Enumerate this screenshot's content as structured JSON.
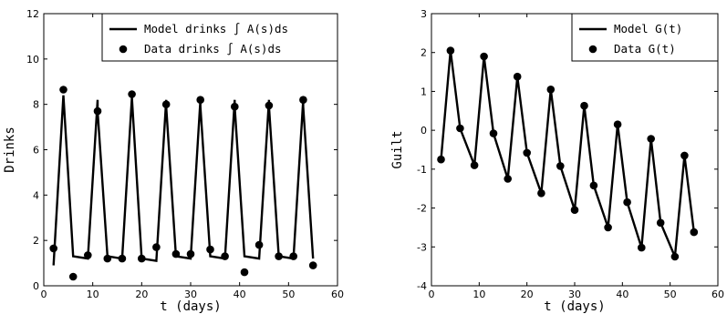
{
  "chart_data": [
    {
      "type": "line",
      "xlabel": "t (days)",
      "ylabel": "Drinks",
      "xlim": [
        0,
        60
      ],
      "ylim": [
        0,
        12
      ],
      "xticks": [
        0,
        10,
        20,
        30,
        40,
        50,
        60
      ],
      "yticks": [
        0,
        2,
        4,
        6,
        8,
        10,
        12
      ],
      "legend_position": "top-right",
      "series": [
        {
          "name": "Model drinks ∫ A(s)ds",
          "style": "line",
          "color": "#000000",
          "x": [
            2,
            4,
            6,
            9,
            11,
            11,
            13,
            16,
            18,
            20,
            23,
            25,
            25,
            27,
            30,
            32,
            32,
            34,
            37,
            39,
            39,
            41,
            44,
            46,
            46,
            48,
            51,
            53,
            53,
            55
          ],
          "y": [
            0.9,
            8.4,
            1.3,
            1.2,
            8.2,
            7.7,
            1.3,
            1.2,
            8.3,
            1.2,
            1.1,
            8.2,
            7.9,
            1.3,
            1.2,
            8.2,
            7.9,
            1.3,
            1.2,
            8.2,
            7.9,
            1.3,
            1.2,
            8.2,
            7.9,
            1.3,
            1.2,
            8.2,
            7.9,
            1.2
          ]
        },
        {
          "name": "Data drinks ∫ A(s)ds",
          "style": "markers",
          "color": "#000000",
          "x": [
            2,
            4,
            6,
            9,
            11,
            13,
            16,
            18,
            20,
            23,
            25,
            27,
            30,
            32,
            34,
            37,
            39,
            41,
            44,
            46,
            48,
            51,
            53,
            55
          ],
          "y": [
            1.65,
            8.65,
            0.4,
            1.35,
            7.7,
            1.2,
            1.2,
            8.45,
            1.2,
            1.7,
            8.0,
            1.4,
            1.4,
            8.2,
            1.6,
            1.3,
            7.9,
            0.6,
            1.8,
            7.95,
            1.3,
            1.3,
            8.2,
            0.9
          ]
        }
      ]
    },
    {
      "type": "line",
      "xlabel": "t (days)",
      "ylabel": "Guilt",
      "xlim": [
        0,
        60
      ],
      "ylim": [
        -4,
        3
      ],
      "xticks": [
        0,
        10,
        20,
        30,
        40,
        50,
        60
      ],
      "yticks": [
        -4,
        -3,
        -2,
        -1,
        0,
        1,
        2,
        3
      ],
      "legend_position": "top-right",
      "series": [
        {
          "name": "Model G(t)",
          "style": "line",
          "color": "#000000",
          "x": [
            2,
            4,
            6,
            9,
            11,
            13,
            16,
            18,
            20,
            23,
            25,
            27,
            30,
            32,
            34,
            37,
            39,
            41,
            44,
            46,
            48,
            51,
            53,
            55
          ],
          "y": [
            -0.75,
            2.05,
            0.05,
            -0.9,
            1.9,
            -0.08,
            -1.25,
            1.38,
            -0.58,
            -1.62,
            1.05,
            -0.92,
            -2.05,
            0.63,
            -1.42,
            -2.5,
            0.15,
            -1.85,
            -3.02,
            -0.22,
            -2.38,
            -3.25,
            -0.65,
            -2.62
          ]
        },
        {
          "name": "Data G(t)",
          "style": "markers",
          "color": "#000000",
          "x": [
            2,
            4,
            6,
            9,
            11,
            13,
            16,
            18,
            20,
            23,
            25,
            27,
            30,
            32,
            34,
            37,
            39,
            41,
            44,
            46,
            48,
            51,
            53,
            55
          ],
          "y": [
            -0.75,
            2.05,
            0.05,
            -0.9,
            1.9,
            -0.08,
            -1.25,
            1.38,
            -0.58,
            -1.62,
            1.05,
            -0.92,
            -2.05,
            0.63,
            -1.42,
            -2.5,
            0.15,
            -1.85,
            -3.02,
            -0.22,
            -2.38,
            -3.25,
            -0.65,
            -2.62
          ]
        }
      ]
    }
  ]
}
